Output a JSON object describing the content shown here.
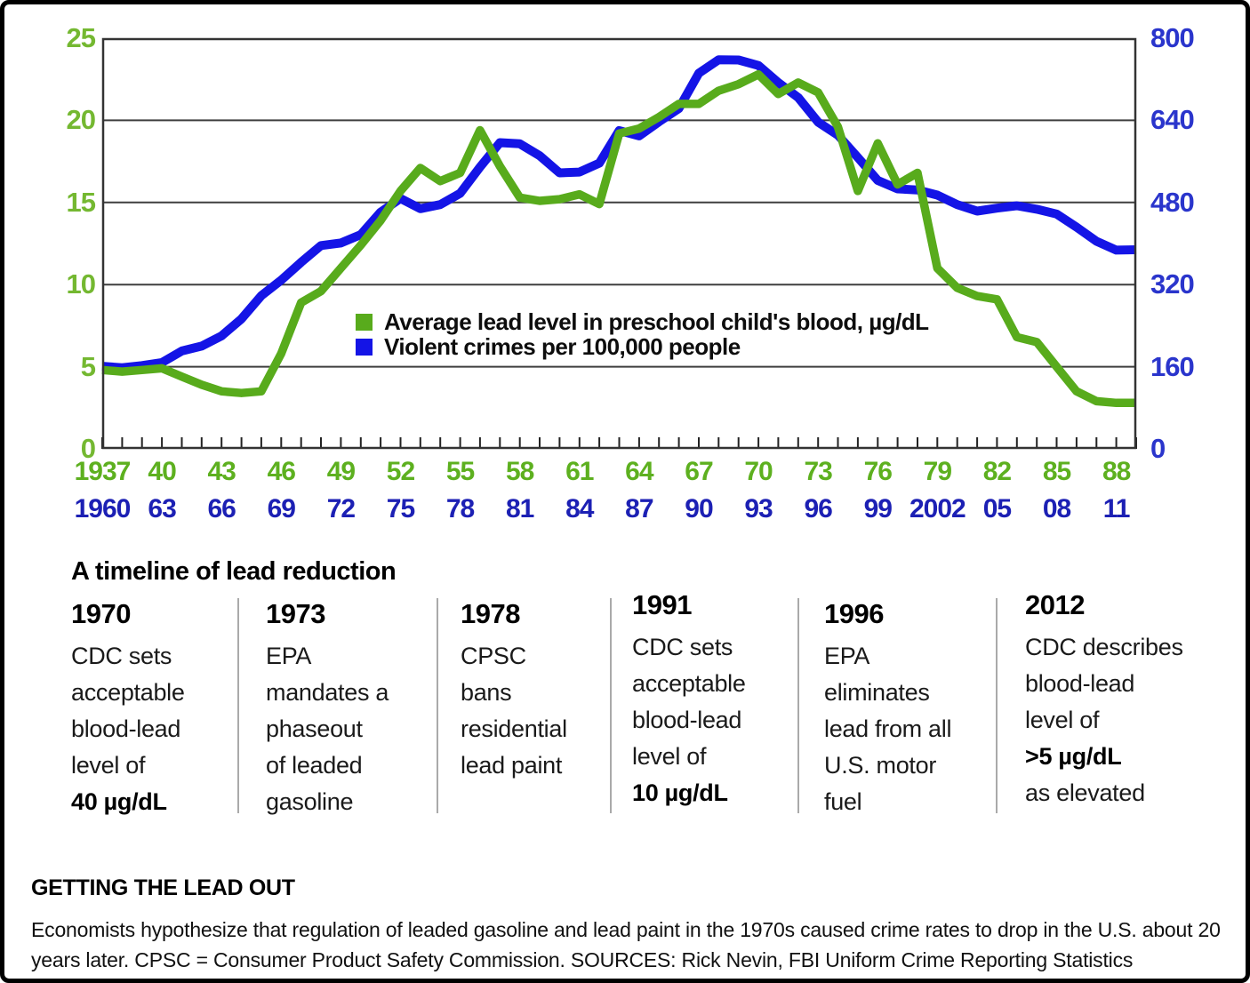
{
  "colors": {
    "lead_line": "#58ab1c",
    "crime_line": "#1414e6",
    "left_axis_labels": "#74b831",
    "right_axis_labels": "#2a35cc",
    "x_labels_green": "#5db01f",
    "x_labels_blue": "#1c20b4",
    "grid": "#3f3f3f",
    "plot_border": "#333333",
    "tick": "#222222",
    "divider": "#aaaaaa"
  },
  "chart_data": {
    "type": "line",
    "legend": [
      {
        "name": "lead-series",
        "label": "Average lead level in preschool child's blood, µg/dL",
        "color": "#58ab1c"
      },
      {
        "name": "crime-series",
        "label": "Violent crimes per 100,000 people",
        "color": "#1414e6"
      }
    ],
    "left_axis": {
      "ticks": [
        25,
        20,
        15,
        10,
        5,
        0
      ],
      "range": [
        0,
        25
      ]
    },
    "right_axis": {
      "ticks": [
        800,
        640,
        480,
        320,
        160,
        0
      ],
      "range": [
        0,
        800
      ]
    },
    "x_axis": {
      "green_labels": [
        "1937",
        "40",
        "43",
        "46",
        "49",
        "52",
        "55",
        "58",
        "61",
        "64",
        "67",
        "70",
        "73",
        "76",
        "79",
        "82",
        "85",
        "88"
      ],
      "blue_labels": [
        "1960",
        "63",
        "66",
        "69",
        "72",
        "75",
        "78",
        "81",
        "84",
        "87",
        "90",
        "93",
        "96",
        "99",
        "2002",
        "05",
        "08",
        "11"
      ],
      "green_year_range": [
        1937,
        1989
      ],
      "blue_year_range": [
        1960,
        2012
      ],
      "tick_every_years": 1,
      "label_every_years": 3
    },
    "series": [
      {
        "name": "lead",
        "axis": "left",
        "color": "#58ab1c",
        "start_year": 1937,
        "values": [
          4.8,
          4.7,
          4.8,
          4.9,
          4.4,
          3.9,
          3.5,
          3.4,
          3.5,
          5.8,
          8.9,
          9.6,
          11.0,
          12.4,
          13.9,
          15.7,
          17.1,
          16.3,
          16.8,
          19.4,
          17.2,
          15.3,
          15.1,
          15.2,
          15.5,
          14.9,
          19.2,
          19.5,
          20.2,
          21.0,
          21.0,
          21.8,
          22.2,
          22.8,
          21.6,
          22.3,
          21.7,
          19.6,
          15.7,
          18.6,
          16.1,
          16.8,
          11.0,
          9.8,
          9.3,
          9.1,
          6.8,
          6.5,
          5.0,
          3.5,
          2.9,
          2.8,
          2.8
        ]
      },
      {
        "name": "violent_crime",
        "axis": "right",
        "color": "#1414e6",
        "start_year": 1960,
        "values": [
          160.9,
          158.1,
          162.3,
          168.2,
          190.6,
          200.2,
          220.0,
          253.2,
          298.4,
          328.7,
          363.5,
          396.0,
          401.0,
          417.4,
          461.1,
          487.8,
          467.8,
          475.9,
          497.8,
          548.9,
          596.6,
          594.3,
          571.1,
          537.7,
          539.2,
          556.6,
          620.1,
          609.7,
          637.2,
          663.1,
          731.8,
          758.1,
          757.5,
          746.8,
          713.6,
          684.5,
          636.6,
          611.0,
          567.6,
          523.0,
          506.5,
          504.5,
          494.4,
          475.8,
          463.2,
          469.0,
          473.6,
          466.9,
          457.5,
          431.9,
          404.5,
          387.1,
          387.8
        ]
      }
    ],
    "grid": "horizontal",
    "legend_position": "inside-left-middle"
  },
  "timeline": {
    "title": "A timeline of lead reduction",
    "events": [
      {
        "year": "1970",
        "lines": [
          {
            "t": "CDC sets"
          },
          {
            "t": "acceptable"
          },
          {
            "t": "blood-lead"
          },
          {
            "t": "level of"
          },
          {
            "t": "40 µg/dL",
            "b": true
          }
        ]
      },
      {
        "year": "1973",
        "lines": [
          {
            "t": "EPA"
          },
          {
            "t": "mandates a"
          },
          {
            "t": "phaseout"
          },
          {
            "t": "of leaded"
          },
          {
            "t": "gasoline"
          }
        ]
      },
      {
        "year": "1978",
        "lines": [
          {
            "t": "CPSC"
          },
          {
            "t": "bans"
          },
          {
            "t": "residential"
          },
          {
            "t": "lead paint"
          }
        ]
      },
      {
        "year": "1991",
        "lines": [
          {
            "t": "CDC sets"
          },
          {
            "t": "acceptable"
          },
          {
            "t": "blood-lead"
          },
          {
            "t": "level of"
          },
          {
            "t": "10 µg/dL",
            "b": true
          }
        ]
      },
      {
        "year": "1996",
        "lines": [
          {
            "t": "EPA"
          },
          {
            "t": "eliminates"
          },
          {
            "t": "lead from all"
          },
          {
            "t": "U.S. motor"
          },
          {
            "t": "fuel"
          }
        ]
      },
      {
        "year": "2012",
        "lines": [
          {
            "t": "CDC describes"
          },
          {
            "t": "blood-lead"
          },
          {
            "t": "level of"
          },
          {
            "t": ">5 µg/dL",
            "b": true
          },
          {
            "t": "as elevated"
          }
        ]
      }
    ]
  },
  "footer": {
    "title": "GETTING THE LEAD OUT",
    "caption_lines": [
      "Economists hypothesize that regulation of leaded gasoline and lead paint in the 1970s caused crime rates to drop in the U.S. about 20",
      "years later. CPSC = Consumer Product Safety Commission. SOURCES: Rick Nevin, FBI Uniform Crime Reporting Statistics"
    ]
  }
}
